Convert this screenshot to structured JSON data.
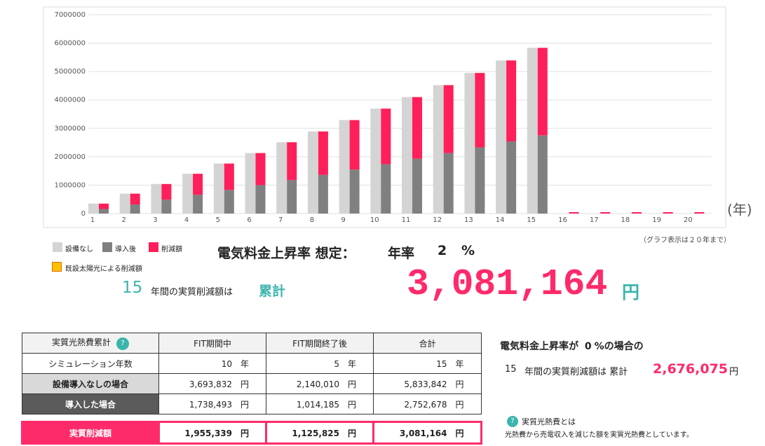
{
  "chart_data": {
    "type": "bar",
    "categories": [
      "1",
      "2",
      "3",
      "4",
      "5",
      "6",
      "7",
      "8",
      "9",
      "10",
      "11",
      "12",
      "13",
      "14",
      "15",
      "16",
      "17",
      "18",
      "19",
      "20"
    ],
    "series": [
      {
        "name": "設備なし",
        "color": "#d4d4d4",
        "values": [
          350000,
          700000,
          1040000,
          1400000,
          1760000,
          2130000,
          2510000,
          2890000,
          3290000,
          3693832,
          4100000,
          4520000,
          4950000,
          5390000,
          5833842,
          0,
          0,
          0,
          0,
          0
        ]
      },
      {
        "name": "導入後",
        "color": "#808080",
        "values": [
          160000,
          320000,
          490000,
          660000,
          830000,
          1000000,
          1180000,
          1360000,
          1550000,
          1738493,
          1930000,
          2130000,
          2330000,
          2540000,
          2752678,
          0,
          0,
          0,
          0,
          0
        ]
      },
      {
        "name": "削減額",
        "color": "#ff1f5a",
        "values": [
          190000,
          380000,
          550000,
          740000,
          930000,
          1130000,
          1330000,
          1530000,
          1740000,
          1955339,
          2170000,
          2390000,
          2620000,
          2850000,
          3081164,
          0,
          0,
          0,
          0,
          0
        ]
      }
    ],
    "legend_extra": {
      "name": "既設太陽光による削減額",
      "color": "#ffc000"
    },
    "x_label": "(年)",
    "note": "（グラフ表示は２０年まで）",
    "ylim": [
      0,
      7000000
    ],
    "yticks": [
      0,
      1000000,
      2000000,
      3000000,
      4000000,
      5000000,
      6000000,
      7000000
    ],
    "grid": true
  },
  "assumption": {
    "label": "電気料金上昇率 想定：",
    "rate_label": "年率",
    "rate": "2",
    "unit": "%"
  },
  "summary": {
    "years": "15",
    "text": "年間の実質削減額は",
    "cumulative": "累計",
    "amount": "3,081,164",
    "unit": "円"
  },
  "table": {
    "header": [
      "実質光熱費累計",
      "FIT期間中",
      "FIT期間終了後",
      "合計"
    ],
    "help_icon": "?",
    "rows": [
      {
        "label": "シミュレーション年数",
        "cells": [
          [
            "10",
            "年"
          ],
          [
            "5",
            "年"
          ],
          [
            "15",
            "年"
          ]
        ]
      },
      {
        "label": "設備導入なしの場合",
        "cells": [
          [
            "3,693,832",
            "円"
          ],
          [
            "2,140,010",
            "円"
          ],
          [
            "5,833,842",
            "円"
          ]
        ]
      },
      {
        "label": "導入した場合",
        "cells": [
          [
            "1,738,493",
            "円"
          ],
          [
            "1,014,185",
            "円"
          ],
          [
            "2,752,678",
            "円"
          ]
        ]
      },
      {
        "label": "実質削減額",
        "cells": [
          [
            "1,955,339",
            "円"
          ],
          [
            "1,125,825",
            "円"
          ],
          [
            "3,081,164",
            "円"
          ]
        ]
      }
    ]
  },
  "zero_case": {
    "line1": [
      "電気料金上昇率が",
      "0",
      "%の場合の"
    ],
    "years": "15",
    "text": "年間の実質削減額は 累計",
    "amount": "2,676,075",
    "unit": "円"
  },
  "info": {
    "icon": "?",
    "title": "実質光熱費とは",
    "text": "光熱費から売電収入を減じた額を実質光熱費としています。"
  }
}
